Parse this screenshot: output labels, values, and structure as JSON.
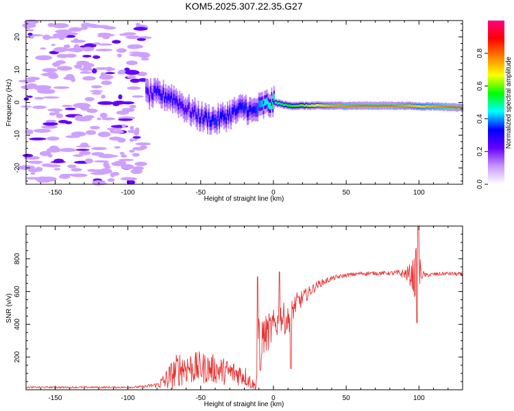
{
  "title": "KOM5.2025.307.22.35.G27",
  "chart_data": [
    {
      "type": "heatmap",
      "name": "spectrogram",
      "xlabel": "Height of straight line (km)",
      "ylabel": "Frequency (Hz)",
      "xlim": [
        -170,
        130
      ],
      "ylim": [
        -25,
        25
      ],
      "x_ticks": [
        "-150",
        "-100",
        "-50",
        "0",
        "50",
        "100"
      ],
      "y_ticks": [
        "-20",
        "-10",
        "0",
        "10",
        "20"
      ],
      "colorbar": {
        "label": "Normalized spectral amplitude",
        "range": [
          0,
          1
        ],
        "ticks": [
          "0.0",
          "0.2",
          "0.4",
          "0.6",
          "0.8"
        ],
        "colors": [
          "#ffffff",
          "#c896ff",
          "#6400ff",
          "#0000ff",
          "#00ffff",
          "#00ff00",
          "#ffff00",
          "#ff8000",
          "#ff0000",
          "#ff0080"
        ]
      },
      "ridge": {
        "x": [
          -88,
          -80,
          -70,
          -60,
          -50,
          -40,
          -30,
          -20,
          -15,
          -10,
          -5,
          0,
          10,
          20,
          40,
          60,
          80,
          90,
          100,
          110,
          120,
          130
        ],
        "freq": [
          2.5,
          2.5,
          1.5,
          -2,
          -4.5,
          -5.5,
          -3.5,
          -1.5,
          -3,
          -1.5,
          -0.5,
          0,
          -1,
          -1,
          -1,
          -1,
          -1,
          -1,
          -1.2,
          -1.2,
          -1.4,
          -1.6
        ],
        "amplitude": [
          0.25,
          0.3,
          0.3,
          0.25,
          0.3,
          0.35,
          0.3,
          0.35,
          0.3,
          0.4,
          0.45,
          0.5,
          0.55,
          0.6,
          0.75,
          0.8,
          0.8,
          0.75,
          0.7,
          0.75,
          0.8,
          0.8
        ]
      }
    },
    {
      "type": "line",
      "name": "snr",
      "xlabel": "Height of straight line (km)",
      "ylabel": "SNR (v/v)",
      "xlim": [
        -170,
        130
      ],
      "ylim": [
        0,
        1000
      ],
      "x_ticks": [
        "-150",
        "-100",
        "-50",
        "0",
        "50",
        "100"
      ],
      "y_ticks": [
        "200",
        "400",
        "600",
        "800"
      ],
      "color": "#e83030",
      "x": [
        -170,
        -150,
        -120,
        -100,
        -90,
        -80,
        -75,
        -70,
        -65,
        -60,
        -55,
        -50,
        -45,
        -40,
        -35,
        -30,
        -25,
        -20,
        -15,
        -12,
        -10,
        -8,
        -5,
        0,
        5,
        10,
        15,
        20,
        25,
        30,
        40,
        50,
        60,
        70,
        80,
        90,
        95,
        98,
        100,
        102,
        105,
        110,
        120,
        130
      ],
      "mean": [
        15,
        15,
        15,
        15,
        18,
        30,
        50,
        90,
        130,
        140,
        130,
        135,
        130,
        125,
        115,
        105,
        100,
        90,
        40,
        20,
        300,
        320,
        340,
        380,
        450,
        420,
        520,
        560,
        600,
        640,
        680,
        700,
        710,
        712,
        712,
        710,
        700,
        690,
        710,
        705,
        700,
        705,
        710,
        705
      ],
      "spread": [
        5,
        5,
        5,
        5,
        8,
        15,
        60,
        90,
        110,
        110,
        100,
        100,
        95,
        90,
        85,
        80,
        75,
        70,
        40,
        20,
        150,
        130,
        120,
        110,
        100,
        90,
        70,
        50,
        35,
        25,
        15,
        12,
        12,
        12,
        12,
        30,
        80,
        180,
        150,
        30,
        12,
        12,
        12,
        12
      ],
      "spikes": [
        {
          "x": -11,
          "y": 690
        },
        {
          "x": -9,
          "y": 120
        },
        {
          "x": 4,
          "y": 720
        },
        {
          "x": 12,
          "y": 130
        },
        {
          "x": 98.5,
          "y": 410
        },
        {
          "x": 99.5,
          "y": 1000
        }
      ]
    }
  ]
}
